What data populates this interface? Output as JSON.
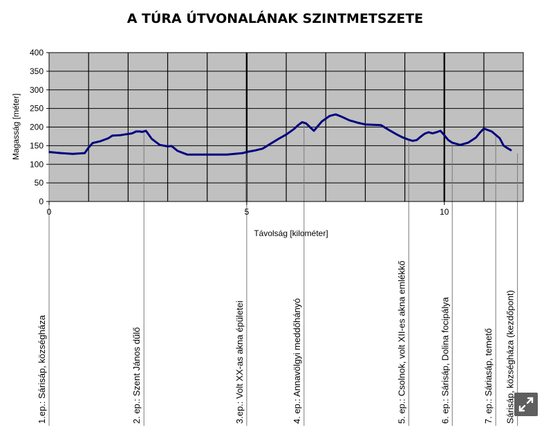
{
  "chart_data": {
    "type": "line",
    "title": "A TÚRA ÚTVONALÁNAK SZINTMETSZETE",
    "xlabel": "Távolság [kilométer]",
    "ylabel": "Magasság [méter]",
    "xlim": [
      0,
      12
    ],
    "ylim": [
      0,
      400
    ],
    "x_ticks": [
      0,
      5,
      10
    ],
    "y_ticks": [
      0,
      50,
      100,
      150,
      200,
      250,
      300,
      350,
      400
    ],
    "grid": true,
    "line_color": "#00007f",
    "plot_bg": "#c0c0c0",
    "series": [
      {
        "x": [
          0,
          0.3,
          0.6,
          0.9,
          1.0,
          1.1,
          1.3,
          1.5,
          1.6,
          1.8,
          1.9,
          2.1,
          2.2,
          2.3,
          2.35,
          2.45,
          2.6,
          2.8,
          3.0,
          3.1,
          3.25,
          3.5,
          4.0,
          4.5,
          4.9,
          5.0,
          5.2,
          5.4,
          5.6,
          5.8,
          6.0,
          6.2,
          6.3,
          6.4,
          6.5,
          6.6,
          6.7,
          6.9,
          7.1,
          7.25,
          7.4,
          7.6,
          7.8,
          8.0,
          8.2,
          8.4,
          8.6,
          8.8,
          8.95,
          9.0,
          9.1,
          9.2,
          9.3,
          9.4,
          9.5,
          9.6,
          9.7,
          9.8,
          9.9,
          10.0,
          10.1,
          10.2,
          10.4,
          10.6,
          10.8,
          10.9,
          11.0,
          11.2,
          11.4,
          11.5,
          11.6,
          11.7
        ],
        "y": [
          133,
          130,
          128,
          130,
          145,
          157,
          162,
          170,
          177,
          178,
          180,
          183,
          188,
          188,
          187,
          190,
          168,
          152,
          148,
          149,
          136,
          126,
          126,
          126,
          130,
          133,
          137,
          142,
          155,
          168,
          180,
          195,
          205,
          213,
          210,
          200,
          190,
          215,
          230,
          234,
          228,
          218,
          212,
          207,
          206,
          205,
          192,
          180,
          172,
          170,
          166,
          163,
          165,
          174,
          182,
          186,
          183,
          186,
          190,
          178,
          165,
          158,
          152,
          158,
          172,
          185,
          196,
          188,
          170,
          150,
          143,
          137
        ]
      }
    ],
    "stops": [
      {
        "label": "1.ep.: Sárisáp, községháza",
        "km": 0.0
      },
      {
        "label": "2. ep.: Szent János dűlő",
        "km": 2.4
      },
      {
        "label": "3.ep.: Volt XX-as akna épületei",
        "km": 5.0
      },
      {
        "label": "4. ep.: Annavölgyi meddőhányó",
        "km": 6.45
      },
      {
        "label": "5. ep.: Csolnok, volt XII-es akna emlékkő",
        "km": 9.1
      },
      {
        "label": "6. ep.: Sárisáp, Dolina focipálya",
        "km": 10.2
      },
      {
        "label": "7. ep.: Sáriasáp, temető",
        "km": 11.3
      },
      {
        "label": "Sárisáp, községháza (kezdőpont)",
        "km": 11.85
      }
    ]
  },
  "ui": {
    "expand_icon": "expand-icon"
  }
}
